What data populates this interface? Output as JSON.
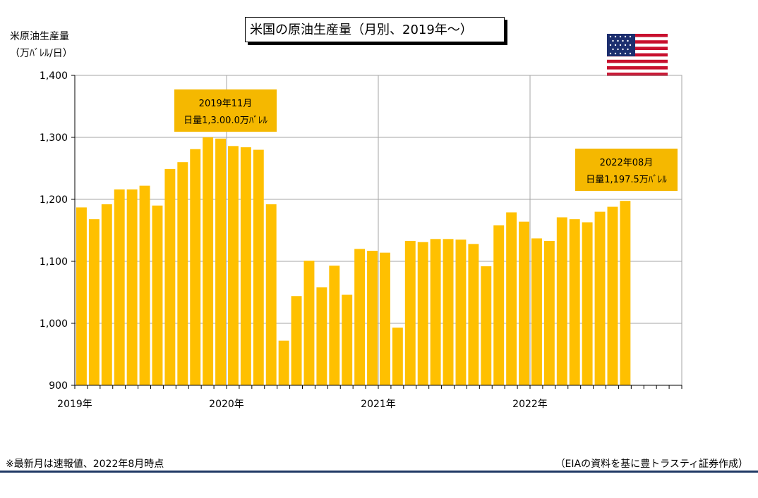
{
  "title": "米国の原油生産量（月別、2019年～）",
  "ylabel_line1": "米原油生産量",
  "ylabel_line2": "（万ﾊﾞﾚﾙ/日）",
  "footer_left": "※最新月は速報値、2022年8月時点",
  "footer_right": "（EIAの資料を基に豊トラスティ証券作成）",
  "colors": {
    "bar": "#ffc000",
    "callout": "#f5b800",
    "grid": "#a6a6a6",
    "rule": "#1f3864"
  },
  "chart_data": {
    "type": "bar",
    "ylim": [
      900,
      1400
    ],
    "yticks": [
      900,
      1000,
      1100,
      1200,
      1300,
      1400
    ],
    "ytick_labels": [
      "900",
      "1,000",
      "1,100",
      "1,200",
      "1,300",
      "1,400"
    ],
    "xtick_labels": [
      "2019年",
      "2020年",
      "2021年",
      "2022年"
    ],
    "grid": true,
    "total_months": 48,
    "categories": [
      "2019-01",
      "2019-02",
      "2019-03",
      "2019-04",
      "2019-05",
      "2019-06",
      "2019-07",
      "2019-08",
      "2019-09",
      "2019-10",
      "2019-11",
      "2019-12",
      "2020-01",
      "2020-02",
      "2020-03",
      "2020-04",
      "2020-05",
      "2020-06",
      "2020-07",
      "2020-08",
      "2020-09",
      "2020-10",
      "2020-11",
      "2020-12",
      "2021-01",
      "2021-02",
      "2021-03",
      "2021-04",
      "2021-05",
      "2021-06",
      "2021-07",
      "2021-08",
      "2021-09",
      "2021-10",
      "2021-11",
      "2021-12",
      "2022-01",
      "2022-02",
      "2022-03",
      "2022-04",
      "2022-05",
      "2022-06",
      "2022-07",
      "2022-08"
    ],
    "values": [
      1187,
      1168,
      1192,
      1216,
      1216,
      1222,
      1190,
      1249,
      1260,
      1281,
      1300,
      1298,
      1286,
      1284,
      1280,
      1192,
      972,
      1044,
      1101,
      1058,
      1093,
      1046,
      1120,
      1117,
      1114,
      993,
      1133,
      1131,
      1136,
      1136,
      1135,
      1128,
      1092,
      1158,
      1179,
      1164,
      1137,
      1133,
      1171,
      1168,
      1163,
      1180,
      1188,
      1197.5
    ],
    "annotations": [
      {
        "line1": "2019年11月",
        "line2": "日量1,3.00.0万ﾊﾞﾚﾙ",
        "index": 10
      },
      {
        "line1": "2022年08月",
        "line2": "日量1,197.5万ﾊﾞﾚﾙ",
        "index": 43
      }
    ]
  }
}
